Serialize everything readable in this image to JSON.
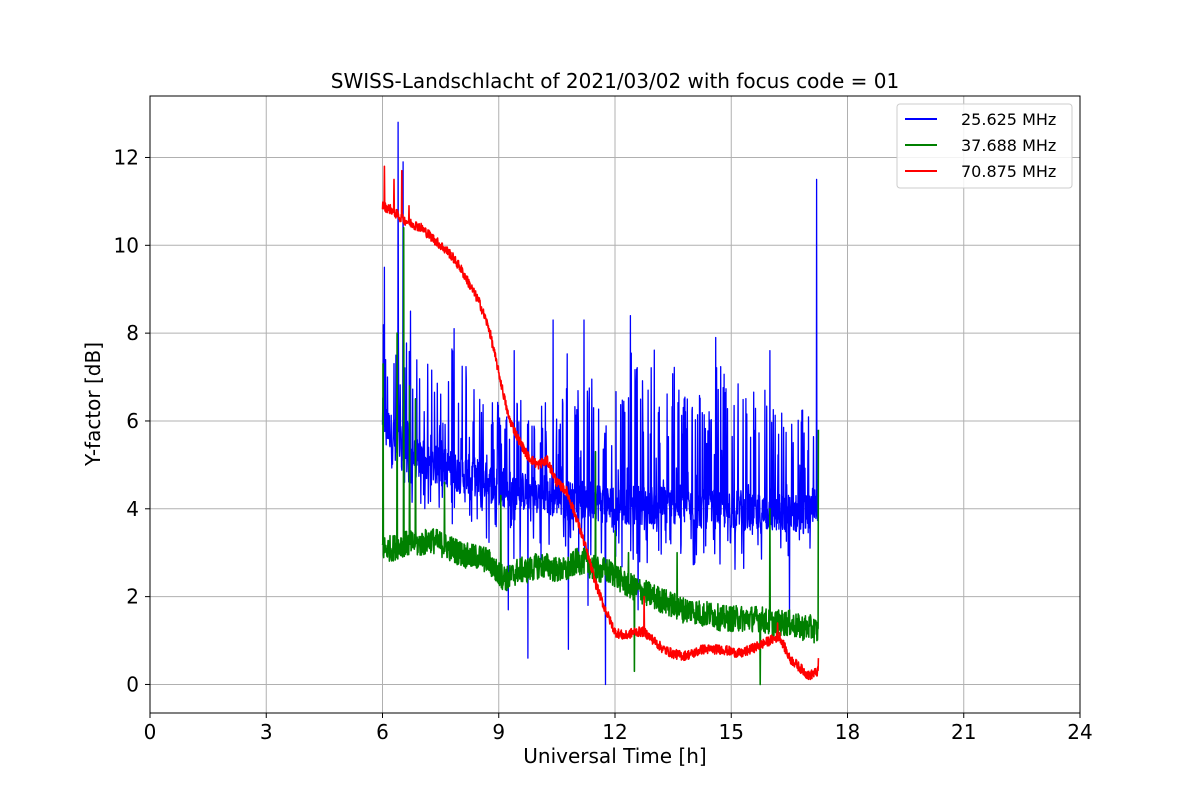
{
  "chart_data": {
    "type": "line",
    "title": "SWISS-Landschlacht of 2021/03/02 with focus code = 01",
    "xlabel": "Universal Time [h]",
    "ylabel": "Y-factor [dB]",
    "xlim": [
      0,
      24
    ],
    "ylim": [
      -0.65,
      13.4
    ],
    "xticks": [
      0,
      3,
      6,
      9,
      12,
      15,
      18,
      21,
      24
    ],
    "yticks": [
      0,
      2,
      4,
      6,
      8,
      10,
      12
    ],
    "grid": true,
    "legend_position": "top-right",
    "series": [
      {
        "name": "25.625 MHz",
        "color": "#0000ff",
        "x": [
          6.0,
          6.25,
          6.5,
          6.75,
          7.0,
          7.25,
          7.5,
          7.75,
          8.0,
          8.25,
          8.5,
          8.75,
          9.0,
          9.25,
          9.5,
          9.75,
          10.0,
          10.25,
          10.5,
          10.75,
          11.0,
          11.25,
          11.5,
          11.75,
          12.0,
          12.25,
          12.5,
          12.75,
          13.0,
          13.25,
          13.5,
          13.75,
          14.0,
          14.25,
          14.5,
          14.75,
          15.0,
          15.25,
          15.5,
          15.75,
          16.0,
          16.25,
          16.5,
          16.75,
          17.0,
          17.25
        ],
        "baseline": [
          6.0,
          5.6,
          5.3,
          5.1,
          5.0,
          4.9,
          4.9,
          4.8,
          4.7,
          4.7,
          4.6,
          4.5,
          4.4,
          4.4,
          4.3,
          4.3,
          4.2,
          4.2,
          4.2,
          4.1,
          4.1,
          4.1,
          4.1,
          4.0,
          4.0,
          4.0,
          4.0,
          4.0,
          4.0,
          4.0,
          4.0,
          4.0,
          3.9,
          3.9,
          3.9,
          3.9,
          3.9,
          3.9,
          3.8,
          3.8,
          3.8,
          3.8,
          3.8,
          3.8,
          3.8,
          4.2
        ],
        "upper": [
          8.4,
          8.0,
          8.3,
          7.6,
          7.5,
          7.2,
          7.0,
          8.0,
          7.7,
          7.5,
          7.0,
          6.8,
          6.5,
          6.3,
          6.8,
          6.2,
          6.6,
          6.5,
          6.2,
          7.8,
          6.5,
          8.0,
          6.8,
          6.8,
          7.2,
          6.6,
          8.0,
          7.0,
          7.7,
          6.8,
          7.6,
          6.7,
          7.1,
          6.7,
          7.0,
          7.6,
          6.6,
          7.0,
          6.4,
          7.3,
          6.6,
          6.3,
          6.4,
          6.4,
          6.3,
          7.0
        ],
        "lower": [
          5.5,
          4.8,
          4.4,
          4.0,
          4.0,
          3.9,
          3.7,
          3.6,
          3.5,
          3.4,
          3.3,
          3.2,
          2.1,
          2.5,
          2.7,
          2.8,
          2.8,
          2.9,
          2.9,
          2.8,
          2.8,
          2.8,
          2.7,
          2.7,
          2.6,
          2.6,
          2.7,
          2.6,
          2.6,
          2.5,
          2.7,
          2.6,
          2.6,
          2.7,
          2.6,
          2.6,
          2.5,
          2.5,
          2.5,
          2.6,
          2.5,
          2.6,
          2.6,
          2.6,
          2.9,
          3.0
        ],
        "spikes": [
          [
            6.05,
            9.5
          ],
          [
            6.4,
            12.8
          ],
          [
            6.53,
            11.9
          ],
          [
            6.72,
            8.5
          ],
          [
            7.85,
            8.1
          ],
          [
            9.4,
            7.6
          ],
          [
            10.4,
            8.3
          ],
          [
            11.2,
            8.3
          ],
          [
            12.4,
            8.4
          ],
          [
            14.6,
            7.9
          ],
          [
            16.0,
            7.6
          ],
          [
            17.2,
            11.5
          ],
          [
            9.25,
            1.7
          ],
          [
            9.75,
            0.6
          ],
          [
            10.8,
            0.8
          ],
          [
            11.3,
            1.8
          ],
          [
            11.75,
            0.0
          ],
          [
            12.6,
            1.7
          ],
          [
            16.5,
            1.5
          ]
        ]
      },
      {
        "name": "37.688 MHz",
        "color": "#008000",
        "x": [
          6.0,
          6.25,
          6.5,
          6.75,
          7.0,
          7.25,
          7.5,
          7.75,
          8.0,
          8.25,
          8.5,
          8.75,
          9.0,
          9.25,
          9.5,
          9.75,
          10.0,
          10.25,
          10.5,
          10.75,
          11.0,
          11.25,
          11.5,
          11.75,
          12.0,
          12.25,
          12.5,
          12.75,
          13.0,
          13.25,
          13.5,
          13.75,
          14.0,
          14.25,
          14.5,
          14.75,
          15.0,
          15.25,
          15.5,
          15.75,
          16.0,
          16.25,
          16.5,
          16.75,
          17.0,
          17.25
        ],
        "baseline": [
          3.1,
          3.1,
          3.2,
          3.2,
          3.2,
          3.3,
          3.2,
          3.1,
          3.0,
          2.9,
          2.9,
          2.8,
          2.5,
          2.4,
          2.6,
          2.6,
          2.7,
          2.7,
          2.6,
          2.6,
          2.8,
          2.8,
          2.6,
          2.6,
          2.5,
          2.3,
          2.2,
          2.1,
          2.0,
          1.9,
          1.8,
          1.7,
          1.7,
          1.6,
          1.6,
          1.5,
          1.5,
          1.5,
          1.5,
          1.5,
          1.4,
          1.4,
          1.4,
          1.3,
          1.3,
          1.2
        ],
        "spikes": [
          [
            6.02,
            7.3
          ],
          [
            6.38,
            8.0
          ],
          [
            6.55,
            10.4
          ],
          [
            6.7,
            6.8
          ],
          [
            6.85,
            6.5
          ],
          [
            7.6,
            4.6
          ],
          [
            9.05,
            4.3
          ],
          [
            11.5,
            5.3
          ],
          [
            12.0,
            3.5
          ],
          [
            12.35,
            3.0
          ],
          [
            13.6,
            3.0
          ],
          [
            16.0,
            4.0
          ],
          [
            17.25,
            5.8
          ],
          [
            12.5,
            0.3
          ],
          [
            15.75,
            0.0
          ]
        ]
      },
      {
        "name": "70.875 MHz",
        "color": "#ff0000",
        "x": [
          6.0,
          6.25,
          6.5,
          6.75,
          7.0,
          7.25,
          7.5,
          7.75,
          8.0,
          8.25,
          8.5,
          8.75,
          9.0,
          9.25,
          9.5,
          9.75,
          10.0,
          10.25,
          10.5,
          10.75,
          11.0,
          11.25,
          11.5,
          11.75,
          12.0,
          12.25,
          12.5,
          12.75,
          13.0,
          13.25,
          13.5,
          13.75,
          14.0,
          14.25,
          14.5,
          14.75,
          15.0,
          15.25,
          15.5,
          15.75,
          16.0,
          16.25,
          16.5,
          16.75,
          17.0,
          17.25
        ],
        "y": [
          10.9,
          10.8,
          10.6,
          10.5,
          10.4,
          10.2,
          10.0,
          9.8,
          9.5,
          9.1,
          8.7,
          8.1,
          7.1,
          6.1,
          5.6,
          5.2,
          5.0,
          5.1,
          4.6,
          4.4,
          3.8,
          3.1,
          2.3,
          1.7,
          1.2,
          1.1,
          1.2,
          1.2,
          1.0,
          0.8,
          0.7,
          0.65,
          0.7,
          0.8,
          0.8,
          0.8,
          0.75,
          0.7,
          0.8,
          0.9,
          1.0,
          1.1,
          0.6,
          0.4,
          0.2,
          0.3
        ],
        "spikes": [
          [
            6.05,
            11.8
          ],
          [
            6.3,
            11.5
          ],
          [
            6.5,
            11.7
          ],
          [
            6.68,
            10.9
          ],
          [
            12.75,
            2.0
          ],
          [
            16.2,
            1.4
          ],
          [
            17.25,
            0.6
          ]
        ]
      }
    ]
  }
}
